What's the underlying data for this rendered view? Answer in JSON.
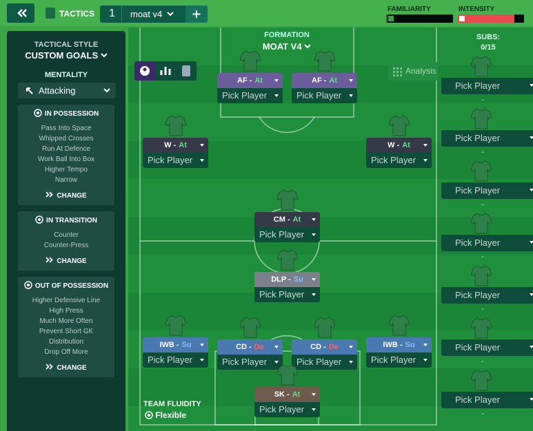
{
  "header": {
    "tab": "TACTICS",
    "slot": "1",
    "tactic_name": "moat v4",
    "familiarity_label": "FAMILIARITY",
    "intensity_label": "INTENSITY",
    "familiarity": 2,
    "intensity": 85
  },
  "sidebar": {
    "style_label": "TACTICAL STYLE",
    "style": "CUSTOM GOALS",
    "mentality_label": "MENTALITY",
    "mentality": "Attacking",
    "panels": [
      {
        "title": "IN POSSESSION",
        "items": [
          "Pass Into Space",
          "Whipped Crosses",
          "Run At Defence",
          "Work Ball Into Box",
          "Higher Tempo",
          "Narrow"
        ],
        "action": "CHANGE"
      },
      {
        "title": "IN TRANSITION",
        "items": [
          "Counter",
          "Counter-Press"
        ],
        "action": "CHANGE"
      },
      {
        "title": "OUT OF POSSESSION",
        "items": [
          "Higher Defensive Line",
          "High Press",
          "Much More Often",
          "Prevent Short GK",
          "Distribution",
          "Drop Off More"
        ],
        "action": "CHANGE"
      }
    ]
  },
  "formation": {
    "label": "FORMATION",
    "name": "MOAT V4"
  },
  "analysis": "Analysis",
  "positions": [
    {
      "role": "AF -",
      "duty": "At",
      "button": "Pick Player"
    },
    {
      "role": "AF -",
      "duty": "At",
      "button": "Pick Player"
    },
    {
      "role": "W -",
      "duty": "At",
      "button": "Pick Player"
    },
    {
      "role": "W -",
      "duty": "At",
      "button": "Pick Player"
    },
    {
      "role": "CM -",
      "duty": "At",
      "button": "Pick Player"
    },
    {
      "role": "DLP -",
      "duty": "Su",
      "button": "Pick Player"
    },
    {
      "role": "IWB -",
      "duty": "Su",
      "button": "Pick Player"
    },
    {
      "role": "CD -",
      "duty": "De",
      "button": "Pick Player"
    },
    {
      "role": "CD -",
      "duty": "De",
      "button": "Pick Player"
    },
    {
      "role": "IWB -",
      "duty": "Su",
      "button": "Pick Player"
    },
    {
      "role": "SK -",
      "duty": "At",
      "button": "Pick Player"
    }
  ],
  "subs": {
    "label": "SUBS:",
    "count": "0/15",
    "slots": [
      {
        "button": "Pick Player",
        "dash": "-"
      },
      {
        "button": "Pick Player",
        "dash": "-"
      },
      {
        "button": "Pick Player",
        "dash": "-"
      },
      {
        "button": "Pick Player",
        "dash": "-"
      },
      {
        "button": "Pick Player",
        "dash": "-"
      },
      {
        "button": "Pick Player",
        "dash": "-"
      },
      {
        "button": "Pick Player",
        "dash": "-"
      }
    ]
  },
  "fluidity": {
    "label": "TEAM FLUIDITY",
    "value": "Flexible"
  }
}
